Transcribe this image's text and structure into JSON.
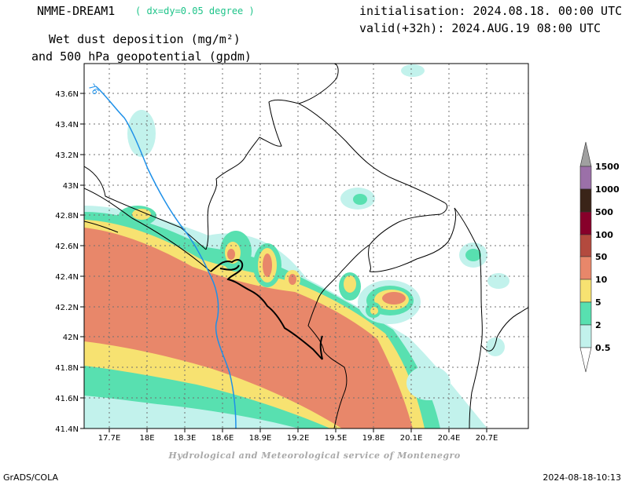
{
  "header": {
    "model": "NMME-DREAM1",
    "resolution": "( dx=dy=0.05 degree )",
    "variable_line1": "Wet dust deposition (mg/m²)",
    "variable_line2": "and 500 hPa geopotential (gpdm)",
    "initialisation": "initialisation: 2024.08.18. 00:00 UTC",
    "valid": "valid(+32h): 2024.AUG.19 08:00 UTC"
  },
  "map": {
    "lon_labels": [
      "17.7E",
      "18E",
      "18.3E",
      "18.6E",
      "18.9E",
      "19.2E",
      "19.5E",
      "19.8E",
      "20.1E",
      "20.4E",
      "20.7E"
    ],
    "lat_labels": [
      "43.6N",
      "43.4N",
      "43.2N",
      "43N",
      "42.8N",
      "42.6N",
      "42.4N",
      "42.2N",
      "42N",
      "41.8N",
      "41.6N",
      "41.4N"
    ],
    "contour_label": "76",
    "contour_color": "#1e90e8"
  },
  "legend": {
    "labels": [
      "1500",
      "1000",
      "500",
      "100",
      "50",
      "10",
      "5",
      "2",
      "0.5"
    ],
    "colors": [
      "#9b70a8",
      "#3a2418",
      "#87002a",
      "#b34a3e",
      "#e8876a",
      "#f7e271",
      "#58e0b0",
      "#c2f2ec"
    ],
    "top_color": "#a0a0a0"
  },
  "credit": "Hydrological and Meteorological service of Montenegro",
  "footer": {
    "left": "GrADS/COLA",
    "right": "2024-08-18-10:13"
  }
}
